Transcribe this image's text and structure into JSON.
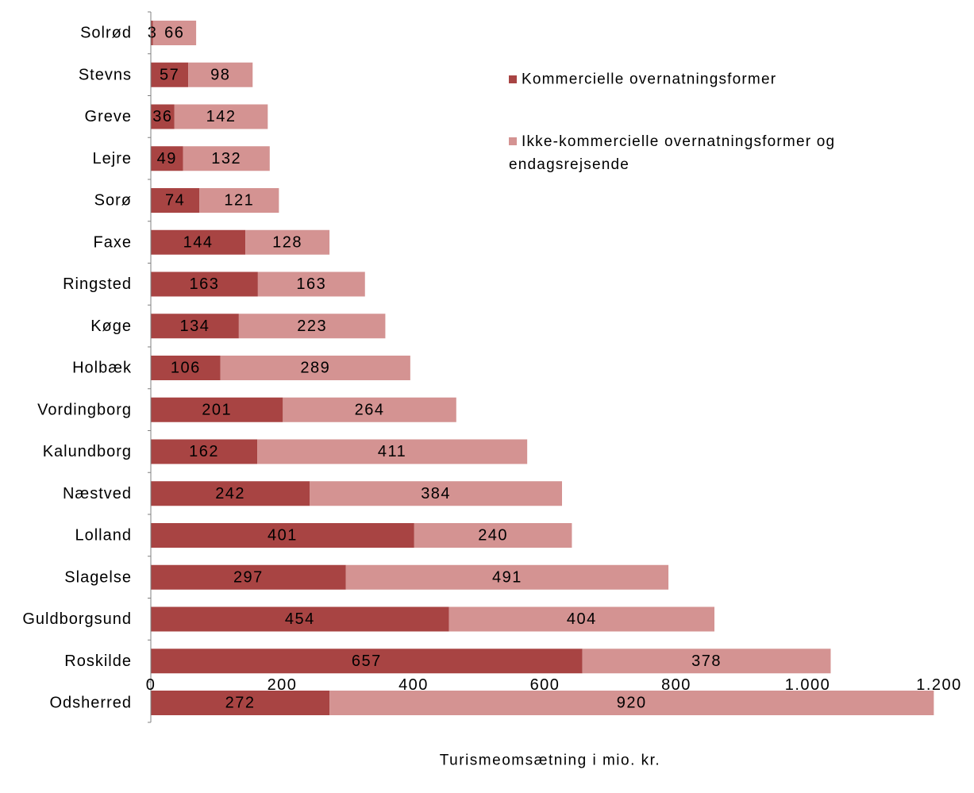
{
  "chart_data": {
    "type": "bar",
    "orientation": "horizontal",
    "stacked": true,
    "title": "",
    "xlabel": "Turismeomsætning i mio. kr.",
    "ylabel": "",
    "xlim": [
      0,
      1200
    ],
    "x_ticks": [
      0,
      200,
      400,
      600,
      800,
      1000,
      1200
    ],
    "x_tick_labels": [
      "0",
      "200",
      "400",
      "600",
      "800",
      "1.000",
      "1.200"
    ],
    "grid": false,
    "legend_position": "top-right",
    "categories": [
      "Solrød",
      "Stevns",
      "Greve",
      "Lejre",
      "Sorø",
      "Faxe",
      "Ringsted",
      "Køge",
      "Holbæk",
      "Vordingborg",
      "Kalundborg",
      "Næstved",
      "Lolland",
      "Slagelse",
      "Guldborgsund",
      "Roskilde",
      "Odsherred"
    ],
    "series": [
      {
        "name": "Kommercielle overnatningsformer",
        "color": "#A84443",
        "values": [
          3,
          57,
          36,
          49,
          74,
          144,
          163,
          134,
          106,
          201,
          162,
          242,
          401,
          297,
          454,
          657,
          272
        ]
      },
      {
        "name": "Ikke-kommercielle overnatningsformer og endagsrejsende",
        "color": "#D49392",
        "values": [
          66,
          98,
          142,
          132,
          121,
          128,
          163,
          223,
          289,
          264,
          411,
          384,
          240,
          491,
          404,
          378,
          920
        ]
      }
    ]
  }
}
